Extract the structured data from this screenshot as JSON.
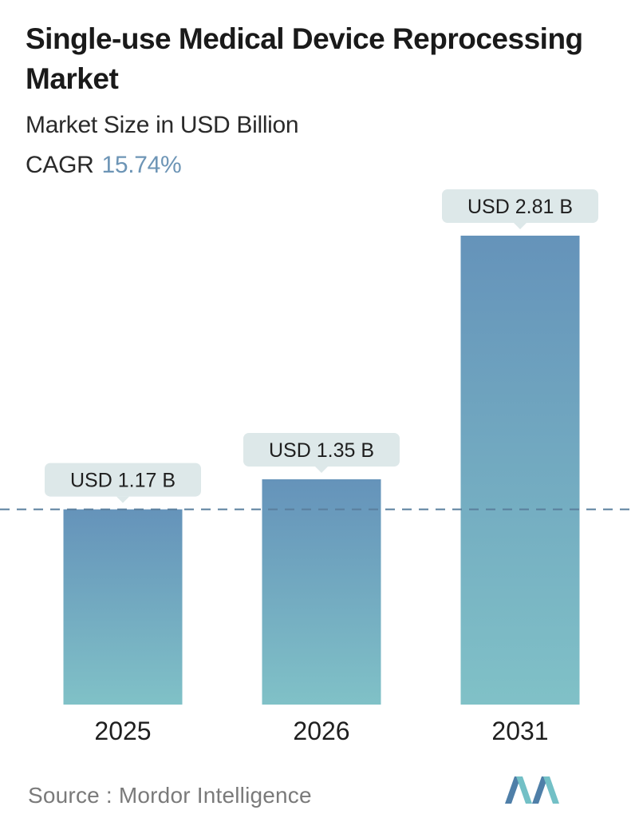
{
  "title": "Single-use Medical Device Reprocessing Market",
  "subtitle": "Market Size in USD Billion",
  "cagr": {
    "label": "CAGR",
    "value": "15.74%"
  },
  "source": "Source :  Mordor Intelligence",
  "colors": {
    "bar_top": "#6593ba",
    "bar_bottom": "#80c1c7",
    "label_bg": "#dde8e9",
    "dashed_line": "#5a7f9d",
    "cagr_value": "#6d95b6",
    "logo_dark": "#4f7fa8",
    "logo_light": "#73c0c6"
  },
  "chart_data": {
    "type": "bar",
    "categories": [
      "2025",
      "2026",
      "2031"
    ],
    "values": [
      1.17,
      1.35,
      2.81
    ],
    "data_labels": [
      "USD 1.17 B",
      "USD 1.35 B",
      "USD 2.81 B"
    ],
    "reference_line": {
      "value": 1.17,
      "style": "dashed"
    },
    "ylim": [
      0,
      2.81
    ],
    "grid": false,
    "legend": "none"
  }
}
